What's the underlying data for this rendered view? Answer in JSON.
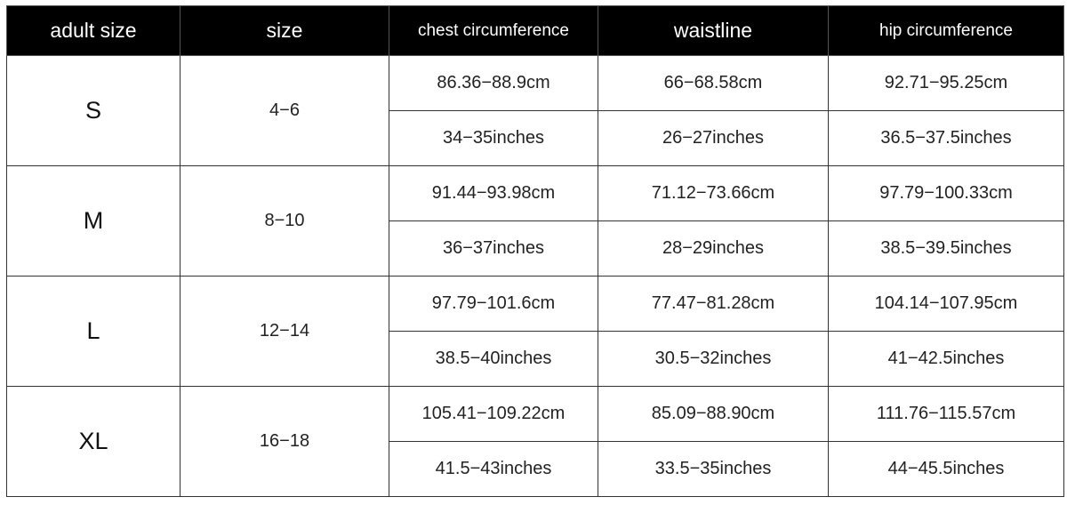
{
  "headers": [
    "adult size",
    "size",
    "chest circumference",
    "waistline",
    "hip circumference"
  ],
  "rows": [
    {
      "adult_size": "S",
      "size": "4−6",
      "cm": [
        "86.36−88.9cm",
        "66−68.58cm",
        "92.71−95.25cm"
      ],
      "inches": [
        "34−35inches",
        "26−27inches",
        "36.5−37.5inches"
      ]
    },
    {
      "adult_size": "M",
      "size": "8−10",
      "cm": [
        "91.44−93.98cm",
        "71.12−73.66cm",
        "97.79−100.33cm"
      ],
      "inches": [
        "36−37inches",
        "28−29inches",
        "38.5−39.5inches"
      ]
    },
    {
      "adult_size": "L",
      "size": "12−14",
      "cm": [
        "97.79−101.6cm",
        "77.47−81.28cm",
        "104.14−107.95cm"
      ],
      "inches": [
        "38.5−40inches",
        "30.5−32inches",
        "41−42.5inches"
      ]
    },
    {
      "adult_size": "XL",
      "size": "16−18",
      "cm": [
        "105.41−109.22cm",
        "85.09−88.90cm",
        "111.76−115.57cm"
      ],
      "inches": [
        "41.5−43inches",
        "33.5−35inches",
        "44−45.5inches"
      ]
    }
  ]
}
